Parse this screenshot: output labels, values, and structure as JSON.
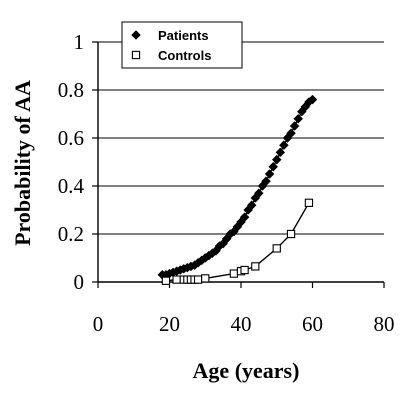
{
  "chart_data": {
    "type": "line",
    "title": "",
    "xlabel": "Age (years)",
    "ylabel": "Probability of AA",
    "xlim": [
      0,
      80
    ],
    "ylim": [
      0,
      1
    ],
    "xticks": [
      "0",
      "20",
      "40",
      "60",
      "80"
    ],
    "yticks": [
      "0",
      "0.2",
      "0.4",
      "0.6",
      "0.8",
      "1"
    ],
    "grid": "horizontal",
    "legend_position": "top-left",
    "series": [
      {
        "name": "Patients",
        "marker": "filled-diamond",
        "color": "#000000",
        "x": [
          18,
          19,
          20,
          21,
          22,
          23,
          24,
          25,
          26,
          27,
          28,
          29,
          30,
          31,
          32,
          33,
          34,
          35,
          36,
          37,
          38,
          39,
          40,
          41,
          42,
          43,
          44,
          45,
          46,
          47,
          48,
          49,
          50,
          51,
          52,
          53,
          54,
          55,
          56,
          57,
          58,
          59,
          60
        ],
        "y": [
          0.03,
          0.03,
          0.035,
          0.04,
          0.045,
          0.05,
          0.055,
          0.06,
          0.065,
          0.07,
          0.08,
          0.09,
          0.1,
          0.11,
          0.12,
          0.13,
          0.15,
          0.16,
          0.18,
          0.2,
          0.21,
          0.23,
          0.25,
          0.27,
          0.3,
          0.32,
          0.35,
          0.37,
          0.4,
          0.42,
          0.45,
          0.48,
          0.51,
          0.54,
          0.57,
          0.6,
          0.62,
          0.65,
          0.68,
          0.71,
          0.73,
          0.75,
          0.76
        ]
      },
      {
        "name": "Controls",
        "marker": "open-square",
        "color": "#000000",
        "x": [
          19,
          22,
          24,
          25,
          26,
          27,
          28,
          30,
          38,
          40,
          41,
          44,
          50,
          54,
          59
        ],
        "y": [
          0.005,
          0.01,
          0.01,
          0.01,
          0.01,
          0.01,
          0.01,
          0.015,
          0.035,
          0.045,
          0.05,
          0.065,
          0.14,
          0.2,
          0.33
        ]
      }
    ]
  }
}
